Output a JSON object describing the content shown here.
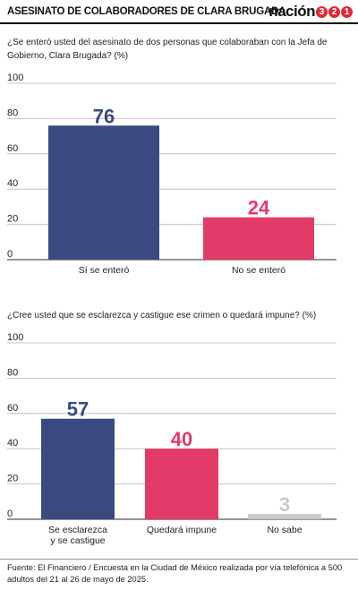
{
  "header": {
    "title": "ASESINATO DE COLABORADORES DE CLARA BRUGADA",
    "logo_word": "nación",
    "logo_digits": [
      "3",
      "2",
      "1"
    ]
  },
  "colors": {
    "blue": "#394a80",
    "pink": "#e33b67",
    "gray": "#c8c8c8",
    "grid": "#b5b5b5",
    "red_logo": "#e02a39"
  },
  "chart_data": [
    {
      "type": "bar",
      "question": "¿Se enteró usted del asesinato de dos personas que colaboraban con la Jefa de Gobierno, Clara Brugada? (%)",
      "categories": [
        "Sí se enteró",
        "No se enteró"
      ],
      "values": [
        76,
        24
      ],
      "value_labels": [
        "76",
        "24"
      ],
      "bar_colors": [
        "#394a80",
        "#e33b67"
      ],
      "label_colors": [
        "#394a80",
        "#e33b67"
      ],
      "yticks": [
        "0",
        "20",
        "40",
        "60",
        "80",
        "100"
      ],
      "ylim": [
        0,
        100
      ],
      "grid": true
    },
    {
      "type": "bar",
      "question": "¿Cree usted que se esclarezca y castigue ese crimen o quedará impune? (%)",
      "categories": [
        "Se esclarezca y se castigue",
        "Quedará impune",
        "No sabe"
      ],
      "category_lines": [
        [
          "Se esclarezca",
          "y se castigue"
        ],
        [
          "Quedará impune"
        ],
        [
          "No sabe"
        ]
      ],
      "values": [
        57,
        40,
        3
      ],
      "value_labels": [
        "57",
        "40",
        "3"
      ],
      "bar_colors": [
        "#394a80",
        "#e33b67",
        "#c8c8c8"
      ],
      "label_colors": [
        "#394a80",
        "#e33b67",
        "#c8c8c8"
      ],
      "yticks": [
        "0",
        "20",
        "40",
        "60",
        "80",
        "100"
      ],
      "ylim": [
        0,
        100
      ],
      "grid": true
    }
  ],
  "source": "Fuente: El Financiero / Encuesta en la Ciudad de México realizada por vía telefónica a 500 adultos del 21 al 26 de mayo de 2025."
}
